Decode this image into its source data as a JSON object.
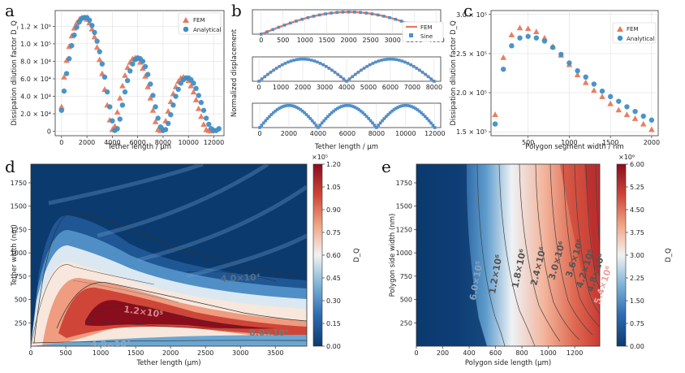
{
  "colors": {
    "fem": "#e8775a",
    "analytical": "#3f8fc6",
    "sine": "#4f8fcc",
    "bg": "#ffffff"
  },
  "panel_letters": [
    "a",
    "b",
    "c",
    "d",
    "e"
  ],
  "chart_data": [
    {
      "id": "a",
      "type": "scatter",
      "xlabel": "Tether length / μm",
      "ylabel": "Dissipation dilution factor D_Q",
      "xlim": [
        -500,
        12800
      ],
      "ylim": [
        -5000,
        138000
      ],
      "xticks": [
        0,
        2000,
        4000,
        6000,
        8000,
        10000,
        12000
      ],
      "xtick_labels": [
        "0",
        "2000",
        "4000",
        "6000",
        "8000",
        "10000",
        "12000"
      ],
      "yticks": [
        0,
        20000,
        40000,
        60000,
        80000,
        100000,
        120000
      ],
      "ytick_labels": [
        "0",
        "2.0 × 10⁴",
        "4.0 × 10⁴",
        "6.0 × 10⁴",
        "8.0 × 10⁴",
        "1.0 × 10⁵",
        "1.2 × 10⁵"
      ],
      "legend": {
        "position": "top-right",
        "entries": [
          "FEM",
          "Analytical"
        ]
      },
      "series": [
        {
          "name": "FEM",
          "marker": "triangle",
          "x": [
            0,
            200,
            400,
            600,
            800,
            1000,
            1200,
            1400,
            1600,
            1800,
            2000,
            2200,
            2400,
            2600,
            2800,
            3000,
            3200,
            3400,
            3600,
            3800,
            4000,
            4200,
            4400,
            4600,
            4800,
            5000,
            5200,
            5400,
            5600,
            5800,
            6000,
            6200,
            6400,
            6600,
            6800,
            7000,
            7200,
            7400,
            7600,
            7800,
            8000,
            8200,
            8400,
            8600,
            8800,
            9000,
            9200,
            9400,
            9600,
            9800,
            10000,
            10200,
            10400,
            10600,
            10800,
            11000,
            11200,
            11400,
            11600,
            11800,
            12000
          ],
          "y": [
            28000,
            62000,
            81000,
            97000,
            109000,
            118000,
            124000,
            128000,
            130000,
            130000,
            128000,
            124000,
            117000,
            108000,
            96000,
            82000,
            66000,
            48000,
            30000,
            13000,
            2000,
            6000,
            22000,
            38000,
            52000,
            64000,
            73000,
            79000,
            83000,
            84000,
            83000,
            79000,
            72000,
            63000,
            51000,
            38000,
            24000,
            11000,
            2000,
            1000,
            3000,
            12000,
            23000,
            34000,
            43000,
            51000,
            57000,
            61000,
            62000,
            61000,
            58000,
            52000,
            45000,
            36000,
            26000,
            17000,
            8000,
            2000,
            1000,
            500,
            1000
          ]
        },
        {
          "name": "Analytical",
          "marker": "circle",
          "x": [
            0,
            200,
            400,
            600,
            800,
            1000,
            1200,
            1400,
            1600,
            1800,
            2000,
            2200,
            2400,
            2600,
            2800,
            3000,
            3200,
            3400,
            3600,
            3800,
            4000,
            4200,
            4400,
            4600,
            4800,
            5000,
            5200,
            5400,
            5600,
            5800,
            6000,
            6200,
            6400,
            6600,
            6800,
            7000,
            7200,
            7400,
            7600,
            7800,
            8000,
            8200,
            8400,
            8600,
            8800,
            9000,
            9200,
            9400,
            9600,
            9800,
            10000,
            10200,
            10400,
            10600,
            10800,
            11000,
            11200,
            11400,
            11600,
            11800,
            12000,
            12200,
            12400
          ],
          "y": [
            24000,
            46000,
            66000,
            83000,
            98000,
            110000,
            119000,
            125000,
            129000,
            130000,
            130000,
            127000,
            121000,
            113000,
            103000,
            91000,
            77000,
            62000,
            45000,
            28000,
            12000,
            1000,
            3000,
            14000,
            30000,
            45000,
            58000,
            69000,
            77000,
            82000,
            84000,
            83000,
            80000,
            74000,
            65000,
            54000,
            41000,
            28000,
            15000,
            5000,
            1000,
            2000,
            9000,
            19000,
            30000,
            40000,
            48000,
            55000,
            59000,
            61000,
            61000,
            59000,
            55000,
            49000,
            41000,
            33000,
            24000,
            15000,
            8000,
            3000,
            1000,
            1000,
            3000
          ]
        }
      ]
    },
    {
      "id": "b",
      "type": "line",
      "ylabel": "Normalized displacement",
      "xlabel": "Tether length / μm",
      "legend": {
        "position": "top-right",
        "entries": [
          "FEM",
          "Sine"
        ]
      },
      "subplots": [
        {
          "xlim": [
            -200,
            4100
          ],
          "xticks": [
            0,
            500,
            1000,
            1500,
            2000,
            2500,
            3000,
            3500,
            4000
          ],
          "xtick_labels": [
            "0",
            "500",
            "1000",
            "1500",
            "2000",
            "2500",
            "3000",
            "3500",
            "4000"
          ],
          "lobes": 1,
          "length": 4000
        },
        {
          "xlim": [
            -300,
            8300
          ],
          "xticks": [
            0,
            1000,
            2000,
            3000,
            4000,
            5000,
            6000,
            7000,
            8000
          ],
          "xtick_labels": [
            "0",
            "1000",
            "2000",
            "3000",
            "4000",
            "5000",
            "6000",
            "7000",
            "8000"
          ],
          "lobes": 2,
          "length": 8000
        },
        {
          "xlim": [
            -500,
            12400
          ],
          "xticks": [
            0,
            2000,
            4000,
            6000,
            8000,
            10000,
            12000
          ],
          "xtick_labels": [
            "0",
            "2000",
            "4000",
            "6000",
            "8000",
            "10000",
            "12000"
          ],
          "lobes": 3,
          "length": 12000
        }
      ],
      "ylim": [
        0,
        1.1
      ]
    },
    {
      "id": "c",
      "type": "scatter",
      "xlabel": "Polygon segment width / nm",
      "ylabel": "Dissipation dilution factor D_Q",
      "xlim": [
        50,
        2080
      ],
      "ylim": [
        145000,
        305000
      ],
      "xticks": [
        500,
        1000,
        1500,
        2000
      ],
      "xtick_labels": [
        "500",
        "1000",
        "1500",
        "2000"
      ],
      "yticks": [
        150000,
        200000,
        250000,
        300000
      ],
      "ytick_labels": [
        "1.5 × 10⁵",
        "2.0 × 10⁵",
        "2.5 × 10⁵",
        "3.0 × 10⁵"
      ],
      "legend": {
        "position": "top-right",
        "entries": [
          "FEM",
          "Analytical"
        ]
      },
      "series": [
        {
          "name": "FEM",
          "marker": "triangle",
          "x": [
            100,
            200,
            300,
            400,
            500,
            600,
            700,
            800,
            900,
            1000,
            1100,
            1200,
            1300,
            1400,
            1500,
            1600,
            1700,
            1800,
            1900,
            2000
          ],
          "y": [
            172000,
            245000,
            274000,
            283000,
            282000,
            278000,
            270000,
            259000,
            248000,
            236000,
            223000,
            213000,
            203000,
            195000,
            186000,
            178000,
            172000,
            167000,
            160000,
            153000
          ]
        },
        {
          "name": "Analytical",
          "marker": "circle",
          "x": [
            100,
            200,
            300,
            400,
            500,
            600,
            700,
            800,
            900,
            1000,
            1100,
            1200,
            1300,
            1400,
            1500,
            1600,
            1700,
            1800,
            1900,
            2000
          ],
          "y": [
            160000,
            230000,
            260000,
            270000,
            272000,
            270000,
            266000,
            258000,
            249000,
            238000,
            228000,
            220000,
            211000,
            202000,
            195000,
            189000,
            182000,
            176000,
            170000,
            165000
          ]
        }
      ]
    },
    {
      "id": "d",
      "type": "heatmap",
      "xlabel": "Tether length (μm)",
      "ylabel": "Tether width (nm)",
      "xlim": [
        0,
        3950
      ],
      "ylim": [
        0,
        1950
      ],
      "xticks": [
        0,
        500,
        1000,
        1500,
        2000,
        2500,
        3000,
        3500
      ],
      "xtick_labels": [
        "0",
        "500",
        "1000",
        "1500",
        "2000",
        "2500",
        "3000",
        "3500"
      ],
      "yticks": [
        250,
        500,
        750,
        1000,
        1250,
        1500,
        1750
      ],
      "ytick_labels": [
        "250",
        "500",
        "750",
        "1000",
        "1250",
        "1500",
        "1750"
      ],
      "colorbar": {
        "label": "D_Q",
        "exponent": "×10⁵",
        "ticks": [
          "0.00",
          "0.15",
          "0.30",
          "0.45",
          "0.60",
          "0.75",
          "0.90",
          "1.05",
          "1.20"
        ],
        "stops": [
          "#0b3a6e",
          "#2c6cb0",
          "#7fb5d8",
          "#f2f2f0",
          "#f1a888",
          "#cf4638",
          "#8a0d1d"
        ]
      },
      "contour_labels": [
        "4.0×10⁴",
        "8.0×10⁴",
        "1.2×10⁵",
        "4.0×10⁴"
      ]
    },
    {
      "id": "e",
      "type": "heatmap",
      "xlabel": "Polygon side length (μm)",
      "ylabel": "Polygon side width (nm)",
      "xlim": [
        0,
        1390
      ],
      "ylim": [
        0,
        1950
      ],
      "xticks": [
        0,
        200,
        400,
        600,
        800,
        1000,
        1200
      ],
      "xtick_labels": [
        "0",
        "200",
        "400",
        "600",
        "800",
        "1000",
        "1200"
      ],
      "yticks": [
        250,
        500,
        750,
        1000,
        1250,
        1500,
        1750
      ],
      "ytick_labels": [
        "250",
        "500",
        "750",
        "1000",
        "1250",
        "1500",
        "1750"
      ],
      "colorbar": {
        "label": "D_Q",
        "exponent": "×10⁶",
        "ticks": [
          "0.00",
          "0.75",
          "1.50",
          "2.25",
          "3.00",
          "3.75",
          "4.50",
          "5.25",
          "6.00"
        ],
        "stops": [
          "#0b3a6e",
          "#2c6cb0",
          "#7fb5d8",
          "#f2f2f0",
          "#f1a888",
          "#cf4638",
          "#8a0d1d"
        ]
      },
      "contour_labels": [
        "6.0×10⁵",
        "1.2×10⁶",
        "1.8×10⁶",
        "2.4×10⁶",
        "3.0×10⁶",
        "3.6×10⁶",
        "4.2×10⁶",
        "4.8×10⁶",
        "5.4×10⁶"
      ]
    }
  ]
}
